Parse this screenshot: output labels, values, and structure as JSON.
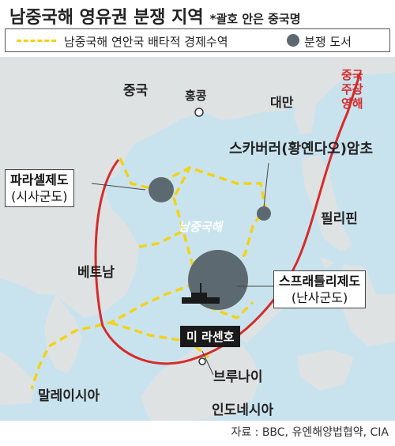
{
  "title": "남중국해 영유권 분쟁 지역",
  "subtitle": "*괄호 안은 중국명",
  "legend": {
    "eez": "남중국해 연안국 배타적 경제수역",
    "disputed": "분쟁 도서"
  },
  "labels": {
    "china": "중국",
    "hongkong": "홍콩",
    "taiwan": "대만",
    "claim1": "중국",
    "claim2": "주장",
    "claim3": "영해",
    "scarborough": "스카버러(황옌다오)암초",
    "paracel": "파라셀제도",
    "paracel_cn": "(시사군도)",
    "scs": "남중국해",
    "philippines": "필리핀",
    "vietnam": "베트남",
    "spratly": "스프래틀리제도",
    "spratly_cn": "(난사군도)",
    "ship": "미 라센호",
    "brunei": "브루나이",
    "malaysia": "말레이시아",
    "indonesia": "인도네시아"
  },
  "source": "자료 : BBC, 유엔해양법협약, CIA",
  "colors": {
    "sea": "#c9e3ee",
    "land": "#dfe2e3",
    "eez": "#f2d21a",
    "claim": "#d62b2b",
    "island": "#5d6970"
  }
}
